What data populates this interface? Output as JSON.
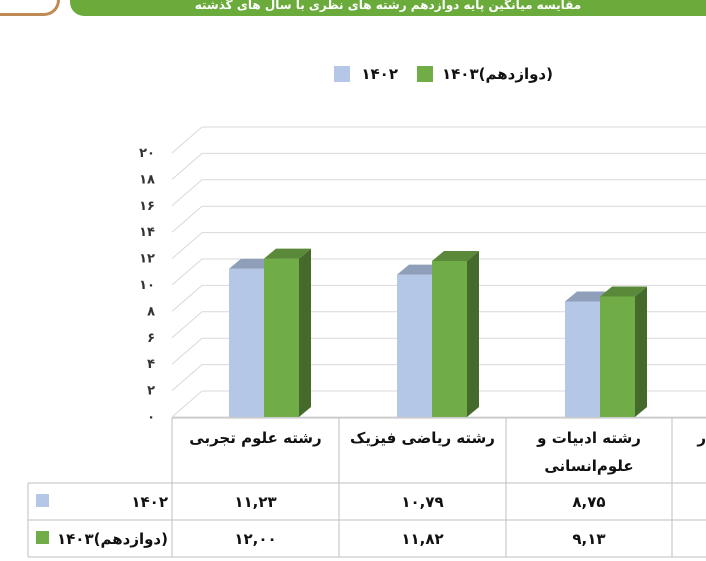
{
  "header": {
    "title": "مقایسه میانگین پایه دوازدهم رشته های نظری با سال های گذشته"
  },
  "chart_data": {
    "type": "bar",
    "categories": [
      [
        "رشته علوم تجربی"
      ],
      [
        "رشته ریاضی فیزیک"
      ],
      [
        "رشته ادبیات و",
        "علوم‌انسانی"
      ],
      [
        "ر"
      ]
    ],
    "category_visible": [
      true,
      true,
      true,
      false
    ],
    "series": [
      {
        "name": "۱۴۰۲",
        "color": "#b4c7e7",
        "values": [
          11.23,
          10.79,
          8.75,
          null
        ],
        "labels": [
          "۱۱,۲۳",
          "۱۰,۷۹",
          "۸,۷۵",
          ""
        ]
      },
      {
        "name": "۱۴۰۳(دوازدهم)",
        "color": "#70ad47",
        "values": [
          12.0,
          11.82,
          9.13,
          null
        ],
        "labels": [
          "۱۲,۰۰",
          "۱۱,۸۲",
          "۹,۱۳",
          ""
        ]
      }
    ],
    "ylim": [
      0,
      20
    ],
    "yticks": [
      {
        "v": 0,
        "label": "۰"
      },
      {
        "v": 2,
        "label": "۲"
      },
      {
        "v": 4,
        "label": "۴"
      },
      {
        "v": 6,
        "label": "۶"
      },
      {
        "v": 8,
        "label": "۸"
      },
      {
        "v": 10,
        "label": "۱۰"
      },
      {
        "v": 12,
        "label": "۱۲"
      },
      {
        "v": 14,
        "label": "۱۴"
      },
      {
        "v": 16,
        "label": "۱۶"
      },
      {
        "v": 18,
        "label": "۱۸"
      },
      {
        "v": 20,
        "label": "۲۰"
      }
    ],
    "grid": true,
    "legend_position": "top"
  }
}
